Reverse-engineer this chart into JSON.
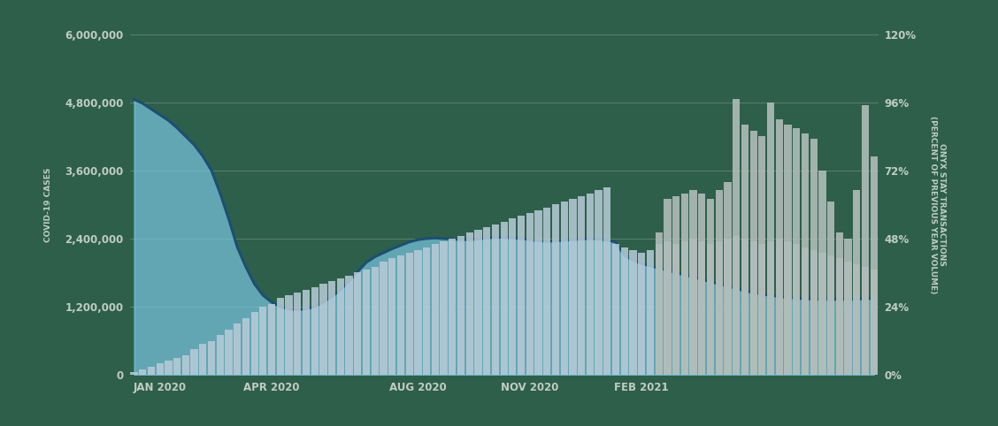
{
  "background_color": "#2e5f4b",
  "left_ylabel": "COVID-19 CASES",
  "right_ylabel": "ONYX STAY TRANSACTIONS\n(PERCENT OF PREVIOUS YEAR VOLUME)",
  "left_ylim": [
    0,
    6000000
  ],
  "right_ylim": [
    0,
    1.2
  ],
  "left_yticks": [
    0,
    1200000,
    2400000,
    3600000,
    4800000,
    6000000
  ],
  "right_yticks": [
    0.0,
    0.24,
    0.48,
    0.72,
    0.96,
    1.2
  ],
  "left_ytick_labels": [
    "0",
    "1,200,000",
    "2,400,000",
    "3,600,000",
    "4,800,000",
    "6,000,000"
  ],
  "right_ytick_labels": [
    "0%",
    "24%",
    "48%",
    "72%",
    "96%",
    "120%"
  ],
  "xtick_labels": [
    "JAN 2020",
    "APR 2020",
    "AUG 2020",
    "NOV 2020",
    "FEB 2021"
  ],
  "grid_color": "#b0bdb5",
  "text_color": "#c0ccc5",
  "area_color": "#7ac5e0",
  "line_color": "#1c4f70",
  "bar_color_light": "#b8ccd8",
  "bar_color_dark": "#b0bcb8",
  "covid_data": [
    4850000,
    4780000,
    4680000,
    4580000,
    4480000,
    4350000,
    4200000,
    4050000,
    3850000,
    3600000,
    3200000,
    2750000,
    2250000,
    1900000,
    1600000,
    1400000,
    1280000,
    1200000,
    1160000,
    1150000,
    1160000,
    1200000,
    1280000,
    1380000,
    1500000,
    1650000,
    1820000,
    1980000,
    2080000,
    2150000,
    2220000,
    2280000,
    2340000,
    2380000,
    2400000,
    2410000,
    2400000,
    2390000,
    2380000,
    2380000,
    2390000,
    2410000,
    2420000,
    2420000,
    2410000,
    2400000,
    2380000,
    2360000,
    2350000,
    2360000,
    2370000,
    2380000,
    2390000,
    2400000,
    2390000,
    2370000,
    2340000,
    2100000,
    2020000,
    1960000,
    1920000,
    1880000,
    1840000,
    1800000,
    1760000,
    1720000,
    1680000,
    1640000,
    1600000,
    1560000,
    1520000,
    1480000,
    1450000,
    1420000,
    1400000,
    1380000,
    1360000,
    1350000,
    1340000,
    1335000,
    1330000,
    1330000,
    1330000,
    1330000,
    1335000,
    1340000,
    1345000
  ],
  "onyx_light_bar": [
    0.01,
    0.02,
    0.03,
    0.04,
    0.05,
    0.06,
    0.07,
    0.09,
    0.11,
    0.12,
    0.14,
    0.16,
    0.18,
    0.2,
    0.22,
    0.24,
    0.25,
    0.27,
    0.28,
    0.29,
    0.3,
    0.31,
    0.32,
    0.33,
    0.34,
    0.35,
    0.36,
    0.37,
    0.38,
    0.4,
    0.41,
    0.42,
    0.43,
    0.44,
    0.45,
    0.46,
    0.47,
    0.48,
    0.49,
    0.5,
    0.51,
    0.52,
    0.53,
    0.54,
    0.55,
    0.56,
    0.57,
    0.58,
    0.59,
    0.6,
    0.61,
    0.62,
    0.63,
    0.64,
    0.65,
    0.66,
    0.46,
    0.45,
    0.44,
    0.43,
    0.44,
    0.46,
    0.47,
    0.46,
    0.47,
    0.48,
    0.47,
    0.46,
    0.47,
    0.48,
    0.49,
    0.48,
    0.47,
    0.46,
    0.47,
    0.48,
    0.47,
    0.46,
    0.45,
    0.44,
    0.43,
    0.42,
    0.41,
    0.4,
    0.39,
    0.38,
    0.37
  ],
  "onyx_dark_bar": [
    0,
    0,
    0,
    0,
    0,
    0,
    0,
    0,
    0,
    0,
    0,
    0,
    0,
    0,
    0,
    0,
    0,
    0,
    0,
    0,
    0,
    0,
    0,
    0,
    0,
    0,
    0,
    0,
    0,
    0,
    0,
    0,
    0,
    0,
    0,
    0,
    0,
    0,
    0,
    0,
    0,
    0,
    0,
    0,
    0,
    0,
    0,
    0,
    0,
    0,
    0,
    0,
    0,
    0,
    0,
    0,
    0.0,
    0.0,
    0.0,
    0.0,
    0.0,
    0.5,
    0.62,
    0.63,
    0.64,
    0.65,
    0.64,
    0.62,
    0.65,
    0.68,
    0.97,
    0.88,
    0.86,
    0.84,
    0.96,
    0.9,
    0.88,
    0.87,
    0.85,
    0.83,
    0.72,
    0.61,
    0.5,
    0.48,
    0.65,
    0.95,
    0.77
  ],
  "n_total": 87,
  "xtick_indices": [
    3,
    16,
    33,
    46,
    59
  ]
}
